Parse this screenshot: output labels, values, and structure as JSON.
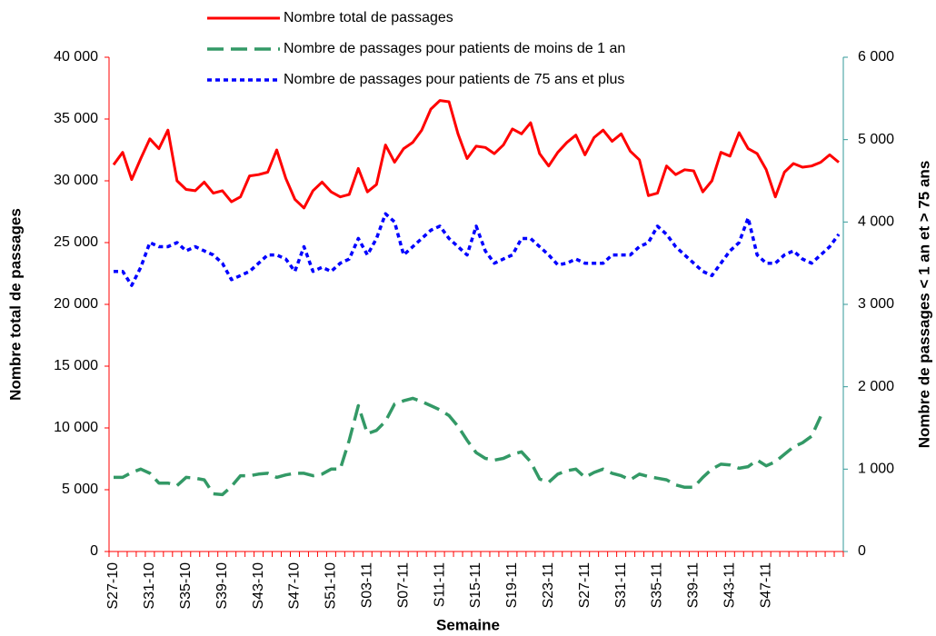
{
  "chart_data": {
    "type": "line",
    "x_label": "Semaine",
    "y_label": "Nombre total de passages",
    "y2_label": "Nombre de passages < 1 an et > 75 ans",
    "categories": [
      "S27-10",
      null,
      null,
      null,
      "S31-10",
      null,
      null,
      null,
      "S35-10",
      null,
      null,
      null,
      "S39-10",
      null,
      null,
      null,
      "S43-10",
      null,
      null,
      null,
      "S47-10",
      null,
      null,
      null,
      "S51-10",
      null,
      null,
      null,
      "S03-11",
      null,
      null,
      null,
      "S07-11",
      null,
      null,
      null,
      "S11-11",
      null,
      null,
      null,
      "S15-11",
      null,
      null,
      null,
      "S19-11",
      null,
      null,
      null,
      "S23-11",
      null,
      null,
      null,
      "S27-11",
      null,
      null,
      null,
      "S31-11",
      null,
      null,
      null,
      "S35-11",
      null,
      null,
      null,
      "S39-11",
      null,
      null,
      null,
      "S43-11",
      null,
      null,
      null,
      "S47-11",
      null,
      null,
      null,
      null,
      null,
      null,
      null,
      null
    ],
    "ylim": [
      0,
      40000
    ],
    "yticks": [
      {
        "value": 0,
        "label": "0"
      },
      {
        "value": 5000,
        "label": "5 000"
      },
      {
        "value": 10000,
        "label": "10 000"
      },
      {
        "value": 15000,
        "label": "15 000"
      },
      {
        "value": 20000,
        "label": "20 000"
      },
      {
        "value": 25000,
        "label": "25 000"
      },
      {
        "value": 30000,
        "label": "30 000"
      },
      {
        "value": 35000,
        "label": "35 000"
      },
      {
        "value": 40000,
        "label": "40 000"
      }
    ],
    "y2lim": [
      0,
      6000
    ],
    "y2ticks": [
      {
        "value": 0,
        "label": "0"
      },
      {
        "value": 1000,
        "label": "1 000"
      },
      {
        "value": 2000,
        "label": "2 000"
      },
      {
        "value": 3000,
        "label": "3 000"
      },
      {
        "value": 4000,
        "label": "4 000"
      },
      {
        "value": 5000,
        "label": "5 000"
      },
      {
        "value": 6000,
        "label": "6 000"
      }
    ],
    "legend": "top",
    "series": [
      {
        "name": "Nombre total de passages",
        "color": "#ff0000",
        "dash": "solid",
        "values": [
          31300,
          32300,
          30100,
          31800,
          33400,
          32600,
          34100,
          30000,
          29300,
          29200,
          29900,
          29000,
          29200,
          28300,
          28700,
          30400,
          30500,
          30700,
          32500,
          30200,
          28500,
          27800,
          29200,
          29900,
          29100,
          28700,
          28900,
          31000,
          29100,
          29700,
          32900,
          31500,
          32600,
          33100,
          34100,
          35800,
          36500,
          36400,
          33800,
          31800,
          32800,
          32700,
          32200,
          32900,
          34200,
          33800,
          34700,
          32200,
          31200,
          32300,
          33100,
          33700,
          32100,
          33500,
          34100,
          33200,
          33800,
          32400,
          31700,
          28800,
          29000,
          31200,
          30500,
          30900,
          30800,
          29100,
          30000,
          32300,
          32000,
          33900,
          32600,
          32200,
          30900,
          28700,
          30700,
          31400,
          31100,
          31200,
          31500,
          32100,
          31500
        ]
      },
      {
        "name": "Nombre de passages pour patients de moins de 1 an",
        "color": "#339966",
        "dash": "dashed",
        "axis": "y2",
        "values": [
          900,
          900,
          960,
          1000,
          950,
          830,
          830,
          800,
          900,
          890,
          870,
          700,
          690,
          790,
          920,
          920,
          940,
          950,
          900,
          930,
          950,
          950,
          920,
          940,
          1000,
          1000,
          1350,
          1770,
          1430,
          1470,
          1580,
          1790,
          1830,
          1860,
          1820,
          1770,
          1720,
          1650,
          1520,
          1350,
          1200,
          1130,
          1110,
          1130,
          1180,
          1210,
          1090,
          880,
          840,
          940,
          980,
          1000,
          900,
          960,
          1000,
          950,
          920,
          870,
          940,
          910,
          890,
          870,
          810,
          780,
          780,
          900,
          1000,
          1060,
          1050,
          1010,
          1030,
          1110,
          1040,
          1090,
          1180,
          1270,
          1320,
          1400,
          1640,
          null,
          null
        ]
      },
      {
        "name": "Nombre de passages pour patients de 75 ans et plus",
        "color": "#0000ff",
        "dash": "dotted",
        "axis": "y2",
        "values": [
          3400,
          3400,
          3230,
          3450,
          3750,
          3700,
          3700,
          3750,
          3650,
          3700,
          3650,
          3600,
          3500,
          3300,
          3350,
          3400,
          3500,
          3600,
          3600,
          3550,
          3400,
          3700,
          3400,
          3450,
          3400,
          3500,
          3550,
          3800,
          3600,
          3800,
          4100,
          4000,
          3600,
          3700,
          3800,
          3900,
          3950,
          3800,
          3700,
          3600,
          3950,
          3650,
          3500,
          3550,
          3600,
          3800,
          3800,
          3700,
          3600,
          3480,
          3500,
          3550,
          3500,
          3500,
          3500,
          3600,
          3600,
          3600,
          3700,
          3750,
          3950,
          3850,
          3700,
          3600,
          3500,
          3400,
          3350,
          3500,
          3650,
          3750,
          4050,
          3600,
          3500,
          3500,
          3600,
          3650,
          3550,
          3500,
          3600,
          3700,
          3850
        ]
      }
    ]
  }
}
